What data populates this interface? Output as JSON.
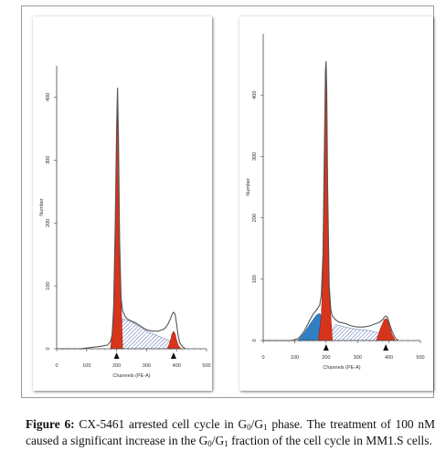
{
  "chart_data": [
    {
      "type": "area",
      "panel": "left",
      "xlabel": "Channels (PE-A)",
      "ylabel": "Number",
      "xlim": [
        0,
        500
      ],
      "ylim": [
        0,
        450
      ],
      "xticks": [
        "0",
        "100",
        "200",
        "300",
        "400",
        "500"
      ],
      "yticks": [
        "0",
        "100",
        "200",
        "300",
        "400"
      ],
      "markers_x": [
        200,
        390
      ],
      "histogram": {
        "x": [
          0,
          80,
          150,
          160,
          170,
          180,
          185,
          190,
          195,
          200,
          203,
          206,
          210,
          215,
          220,
          230,
          240,
          260,
          280,
          300,
          320,
          340,
          360,
          370,
          380,
          385,
          390,
          395,
          400,
          405,
          410,
          420,
          430
        ],
        "y": [
          0,
          0,
          4,
          5,
          6,
          12,
          22,
          65,
          190,
          350,
          415,
          340,
          170,
          80,
          60,
          50,
          46,
          42,
          36,
          30,
          28,
          28,
          32,
          38,
          48,
          55,
          58,
          55,
          40,
          22,
          10,
          3,
          0
        ]
      },
      "g1_peak": {
        "x": [
          180,
          190,
          195,
          200,
          203,
          206,
          210,
          220
        ],
        "y": [
          0,
          45,
          170,
          330,
          395,
          320,
          150,
          0
        ]
      },
      "g2_peak": {
        "x": [
          370,
          380,
          385,
          390,
          395,
          400,
          405,
          415
        ],
        "y": [
          0,
          14,
          24,
          28,
          24,
          14,
          6,
          0
        ]
      },
      "s_phase": {
        "x": [
          200,
          220,
          260,
          300,
          340,
          380,
          390
        ],
        "y": [
          0,
          48,
          40,
          28,
          20,
          12,
          0
        ]
      }
    },
    {
      "type": "area",
      "panel": "right",
      "xlabel": "Channels (PE-A)",
      "ylabel": "Number",
      "xlim": [
        0,
        500
      ],
      "ylim": [
        0,
        500
      ],
      "xticks": [
        "0",
        "100",
        "200",
        "300",
        "400",
        "500"
      ],
      "yticks": [
        "0",
        "100",
        "200",
        "300",
        "400"
      ],
      "markers_x": [
        200,
        390
      ],
      "histogram": {
        "x": [
          0,
          90,
          110,
          120,
          130,
          140,
          150,
          160,
          170,
          180,
          185,
          190,
          195,
          198,
          200,
          202,
          205,
          210,
          215,
          220,
          230,
          240,
          260,
          280,
          300,
          320,
          340,
          360,
          370,
          380,
          385,
          390,
          395,
          400,
          410,
          420,
          430
        ],
        "y": [
          0,
          0,
          3,
          8,
          15,
          25,
          35,
          44,
          50,
          58,
          75,
          140,
          330,
          440,
          455,
          410,
          250,
          90,
          50,
          40,
          34,
          30,
          28,
          24,
          22,
          22,
          24,
          28,
          30,
          34,
          38,
          40,
          38,
          30,
          15,
          4,
          0
        ]
      },
      "sub_g1_peak": {
        "x": [
          110,
          130,
          150,
          170,
          180,
          190,
          200,
          215
        ],
        "y": [
          0,
          12,
          28,
          42,
          44,
          36,
          16,
          0
        ]
      },
      "g1_peak": {
        "x": [
          175,
          185,
          190,
          195,
          198,
          200,
          202,
          205,
          210,
          220
        ],
        "y": [
          0,
          40,
          120,
          300,
          420,
          440,
          400,
          240,
          80,
          0
        ]
      },
      "g2_peak": {
        "x": [
          360,
          370,
          380,
          385,
          390,
          395,
          400,
          410,
          420
        ],
        "y": [
          0,
          16,
          28,
          34,
          36,
          34,
          26,
          10,
          0
        ]
      },
      "s_phase": {
        "x": [
          200,
          230,
          260,
          300,
          340,
          380,
          390
        ],
        "y": [
          0,
          26,
          22,
          18,
          16,
          10,
          0
        ]
      }
    }
  ],
  "colors": {
    "peak_red": "#d8341c",
    "sub_g1_blue": "#2f7fc4",
    "s_phase_hatch": "#5a6fb0",
    "outline": "#555555"
  },
  "caption": {
    "label": "Figure 6:",
    "line1_text": "CX-5461 arrested cell cycle in G",
    "line1_sub1": "0",
    "line1_mid": "/G",
    "line1_sub2": "1",
    "line1_end": "phase. The",
    "line2_text": "treatment of 100 nM caused a significant increase in the G",
    "line2_sub1": "0",
    "line2_mid": "/G",
    "line2_sub2": "1",
    "line3_text": "fraction of the cell cycle in MM1.S cells."
  }
}
